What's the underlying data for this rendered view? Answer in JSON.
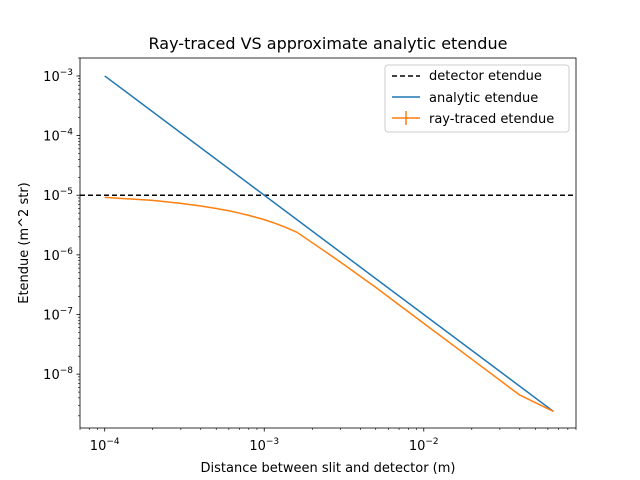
{
  "chart_data": {
    "type": "line",
    "title": "Ray-traced VS approximate analytic etendue",
    "xlabel": "Distance between slit and detector (m)",
    "ylabel": "Etendue (m^2 str)",
    "xscale": "log",
    "yscale": "log",
    "xlim": [
      7e-05,
      0.09
    ],
    "ylim": [
      1.25e-09,
      0.002
    ],
    "x_ticks": [
      {
        "value": 0.0001,
        "base": "10",
        "exp": "−4"
      },
      {
        "value": 0.001,
        "base": "10",
        "exp": "−3"
      },
      {
        "value": 0.01,
        "base": "10",
        "exp": "−2"
      }
    ],
    "y_ticks": [
      {
        "value": 0.001,
        "base": "10",
        "exp": "−3"
      },
      {
        "value": 0.0001,
        "base": "10",
        "exp": "−4"
      },
      {
        "value": 1e-05,
        "base": "10",
        "exp": "−5"
      },
      {
        "value": 1e-06,
        "base": "10",
        "exp": "−6"
      },
      {
        "value": 1e-07,
        "base": "10",
        "exp": "−7"
      },
      {
        "value": 1e-08,
        "base": "10",
        "exp": "−8"
      }
    ],
    "series": [
      {
        "name": "detector etendue",
        "style": "dashed",
        "color": "#000000",
        "hline": 1e-05
      },
      {
        "name": "analytic etendue",
        "style": "solid",
        "color": "#1f77b4",
        "x": [
          0.0001,
          0.065
        ],
        "y": [
          0.001,
          2.37e-09
        ]
      },
      {
        "name": "ray-traced etendue",
        "style": "solid",
        "color": "#ff7f0e",
        "x": [
          0.0001,
          0.00015,
          0.0002,
          0.0003,
          0.0004,
          0.0005,
          0.0006,
          0.0007,
          0.0008,
          0.001,
          0.0012,
          0.0014,
          0.0016,
          0.002,
          0.003,
          0.005,
          0.007,
          0.01,
          0.02,
          0.04,
          0.065
        ],
        "y": [
          9.2e-06,
          8.6e-06,
          8.2e-06,
          7.3e-06,
          6.6e-06,
          6e-06,
          5.5e-06,
          5e-06,
          4.6e-06,
          3.9e-06,
          3.3e-06,
          2.8e-06,
          2.4e-06,
          1.6e-06,
          7.6e-07,
          2.85e-07,
          1.45e-07,
          7.1e-08,
          1.78e-08,
          4.45e-09,
          2.37e-09
        ]
      }
    ],
    "legend_position": "top-right"
  }
}
